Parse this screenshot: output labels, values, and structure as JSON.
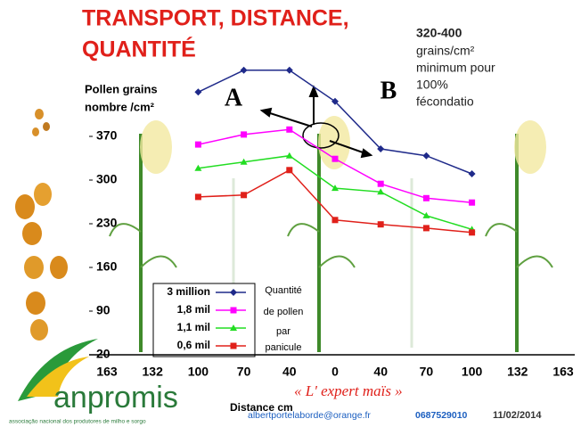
{
  "chart_data": {
    "type": "line",
    "title": [
      "TRANSPORT, DISTANCE,",
      "QUANTITÉ"
    ],
    "ylabel": [
      "Pollen grains",
      "nombre /cm²"
    ],
    "xlabel": "Distance cm",
    "categories": [
      "163",
      "132",
      "100",
      "70",
      "40",
      "0",
      "40",
      "70",
      "100",
      "132",
      "163"
    ],
    "ylim": [
      20,
      480
    ],
    "yticks": [
      20,
      90,
      160,
      230,
      300,
      370
    ],
    "series": [
      {
        "name": "3 million",
        "color": "#1f2a8a",
        "marker": "diamond",
        "values": [
          null,
          null,
          441,
          476,
          476,
          426,
          350,
          339,
          310,
          null,
          null
        ]
      },
      {
        "name": "1,8 mil",
        "color": "#ff00ff",
        "marker": "square",
        "values": [
          null,
          null,
          357,
          373,
          381,
          334,
          294,
          271,
          264,
          null,
          null
        ]
      },
      {
        "name": "1,1 mil",
        "color": "#22dd22",
        "marker": "triangle",
        "values": [
          null,
          null,
          319,
          329,
          339,
          287,
          281,
          243,
          221,
          null,
          null
        ]
      },
      {
        "name": "0,6 mil",
        "color": "#e0201a",
        "marker": "square",
        "values": [
          null,
          null,
          273,
          276,
          316,
          236,
          229,
          223,
          216,
          null,
          null
        ]
      }
    ],
    "legend_note": [
      "Quantité",
      "de pollen",
      "par",
      "panicule"
    ],
    "annotations": {
      "left": "A",
      "right": "B"
    }
  },
  "side_note": {
    "heading": "320-400",
    "lines": [
      "grains/cm²",
      "minimum pour",
      "100%",
      "fécondatio"
    ]
  },
  "footer": {
    "logo": "anpromis",
    "logo_subtitle": "associação nacional dos produtores de milho e sorgo",
    "slogan": "« L' expert maïs »",
    "email": "albertportelaborde@orange.fr",
    "phone": "0687529010",
    "date": "11/02/2014"
  }
}
